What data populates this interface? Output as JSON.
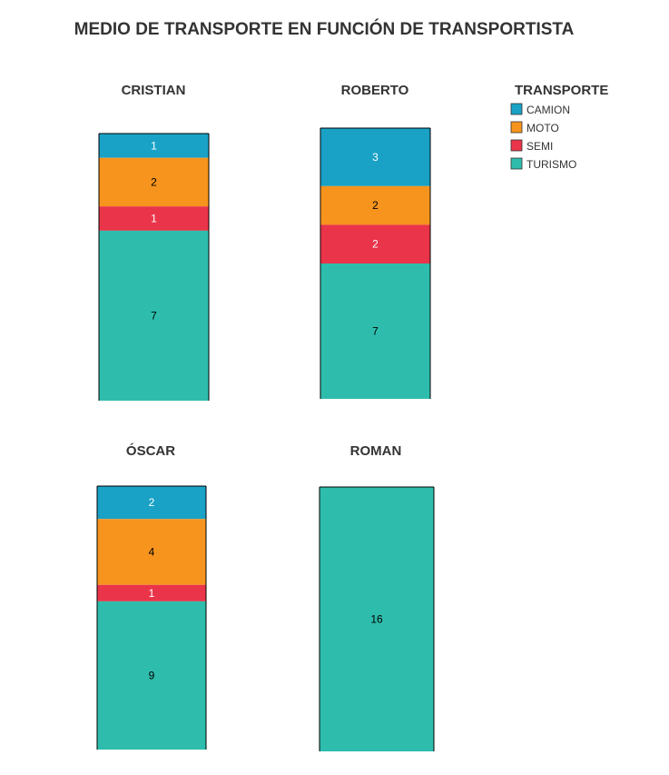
{
  "chart_data": {
    "type": "bar",
    "stacked": true,
    "title": "MEDIO DE TRANSPORTE EN FUNCIÓN DE TRANSPORTISTA",
    "legend": {
      "title": "TRANSPORTE",
      "placement": "top-right",
      "items": [
        {
          "name": "CAMION",
          "color": "#1aa1c6"
        },
        {
          "name": "MOTO",
          "color": "#f7941d"
        },
        {
          "name": "SEMI",
          "color": "#ea3449"
        },
        {
          "name": "TURISMO",
          "color": "#2ebdad"
        }
      ]
    },
    "series_order_top_to_bottom": [
      "CAMION",
      "MOTO",
      "SEMI",
      "TURISMO"
    ],
    "panels": [
      {
        "name": "CRISTIAN",
        "values": {
          "CAMION": 1,
          "MOTO": 2,
          "SEMI": 1,
          "TURISMO": 7
        }
      },
      {
        "name": "ROBERTO",
        "values": {
          "CAMION": 3,
          "MOTO": 2,
          "SEMI": 2,
          "TURISMO": 7
        }
      },
      {
        "name": "ÓSCAR",
        "values": {
          "CAMION": 2,
          "MOTO": 4,
          "SEMI": 1,
          "TURISMO": 9
        }
      },
      {
        "name": "ROMAN",
        "values": {
          "CAMION": 0,
          "MOTO": 0,
          "SEMI": 0,
          "TURISMO": 16
        }
      }
    ],
    "grid": false
  }
}
